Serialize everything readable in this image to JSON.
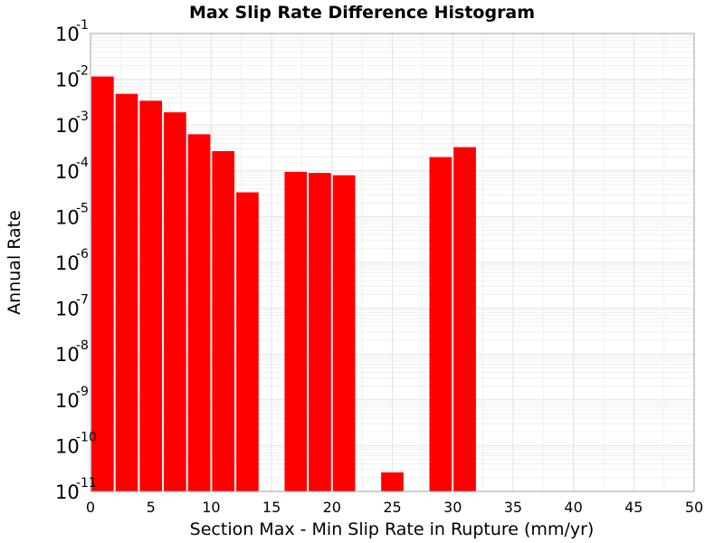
{
  "chart_data": {
    "type": "bar",
    "title": "Max Slip Rate Difference Histogram",
    "xlabel": "Section Max - Min Slip Rate in Rupture (mm/yr)",
    "ylabel": "Annual Rate",
    "xlim": [
      0,
      50
    ],
    "ylim": [
      1e-11,
      0.1
    ],
    "yscale": "log",
    "bin_width": 2,
    "x_ticks": [
      0,
      5,
      10,
      15,
      20,
      25,
      30,
      35,
      40,
      45,
      50
    ],
    "y_tick_base": "10",
    "y_tick_exponents": [
      "-11",
      "-10",
      "-9",
      "-8",
      "-7",
      "-6",
      "-5",
      "-4",
      "-3",
      "-2",
      "-1"
    ],
    "grid": true,
    "bar_color": "#ff0000",
    "bars": [
      {
        "x": 1,
        "value": 0.0115
      },
      {
        "x": 3,
        "value": 0.0048
      },
      {
        "x": 5,
        "value": 0.0034
      },
      {
        "x": 7,
        "value": 0.0019
      },
      {
        "x": 9,
        "value": 0.00063
      },
      {
        "x": 11,
        "value": 0.00027
      },
      {
        "x": 13,
        "value": 3.4e-05
      },
      {
        "x": 17,
        "value": 9.5e-05
      },
      {
        "x": 19,
        "value": 9e-05
      },
      {
        "x": 21,
        "value": 8e-05
      },
      {
        "x": 25,
        "value": 2.6e-11
      },
      {
        "x": 29,
        "value": 0.0002
      },
      {
        "x": 31,
        "value": 0.00033
      }
    ]
  }
}
